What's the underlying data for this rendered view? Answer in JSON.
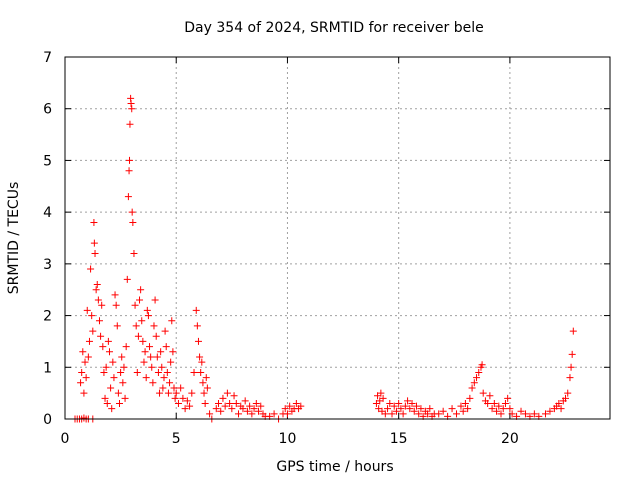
{
  "chart_data": {
    "type": "scatter",
    "title": "Day 354 of 2024, SRMTID for receiver bele",
    "xlabel": "GPS time / hours",
    "ylabel": "SRMTID / TECUs",
    "xlim": [
      0,
      24.5
    ],
    "ylim": [
      0,
      7
    ],
    "xticks": [
      0,
      5,
      10,
      15,
      20
    ],
    "yticks": [
      0,
      1,
      2,
      3,
      4,
      5,
      6,
      7
    ],
    "grid": true,
    "marker": "plus",
    "color": "#ff0000",
    "series": [
      {
        "name": "SRMTID",
        "points": [
          [
            0.45,
            0.0
          ],
          [
            0.55,
            0.0
          ],
          [
            0.65,
            0.0
          ],
          [
            0.75,
            0.0
          ],
          [
            0.85,
            0.02
          ],
          [
            0.95,
            0.0
          ],
          [
            1.05,
            0.0
          ],
          [
            1.25,
            0.0
          ],
          [
            0.7,
            0.7
          ],
          [
            0.75,
            0.9
          ],
          [
            0.8,
            1.3
          ],
          [
            0.85,
            0.5
          ],
          [
            0.9,
            1.1
          ],
          [
            0.95,
            0.8
          ],
          [
            1.0,
            2.1
          ],
          [
            1.05,
            1.2
          ],
          [
            1.1,
            1.5
          ],
          [
            1.15,
            2.9
          ],
          [
            1.2,
            2.0
          ],
          [
            1.25,
            1.7
          ],
          [
            1.3,
            3.8
          ],
          [
            1.32,
            3.4
          ],
          [
            1.35,
            3.2
          ],
          [
            1.4,
            2.5
          ],
          [
            1.45,
            2.6
          ],
          [
            1.5,
            2.3
          ],
          [
            1.55,
            1.9
          ],
          [
            1.6,
            1.6
          ],
          [
            1.65,
            2.2
          ],
          [
            1.7,
            1.4
          ],
          [
            1.75,
            0.9
          ],
          [
            1.8,
            0.4
          ],
          [
            1.85,
            1.0
          ],
          [
            1.9,
            0.3
          ],
          [
            1.95,
            1.5
          ],
          [
            2.0,
            1.3
          ],
          [
            2.05,
            0.6
          ],
          [
            2.1,
            0.2
          ],
          [
            2.15,
            1.1
          ],
          [
            2.2,
            0.8
          ],
          [
            2.25,
            2.4
          ],
          [
            2.3,
            2.2
          ],
          [
            2.35,
            1.8
          ],
          [
            2.4,
            0.5
          ],
          [
            2.45,
            0.3
          ],
          [
            2.5,
            0.9
          ],
          [
            2.55,
            1.2
          ],
          [
            2.6,
            0.7
          ],
          [
            2.65,
            1.0
          ],
          [
            2.7,
            0.4
          ],
          [
            2.75,
            1.4
          ],
          [
            2.8,
            2.7
          ],
          [
            2.85,
            4.3
          ],
          [
            2.88,
            4.8
          ],
          [
            2.9,
            5.0
          ],
          [
            2.92,
            5.7
          ],
          [
            2.95,
            6.2
          ],
          [
            2.97,
            6.1
          ],
          [
            3.0,
            6.0
          ],
          [
            3.02,
            4.0
          ],
          [
            3.05,
            3.8
          ],
          [
            3.1,
            3.2
          ],
          [
            3.15,
            2.2
          ],
          [
            3.2,
            1.8
          ],
          [
            3.25,
            0.9
          ],
          [
            3.3,
            1.6
          ],
          [
            3.35,
            2.3
          ],
          [
            3.4,
            2.5
          ],
          [
            3.45,
            1.9
          ],
          [
            3.5,
            1.5
          ],
          [
            3.55,
            1.1
          ],
          [
            3.6,
            1.3
          ],
          [
            3.65,
            0.8
          ],
          [
            3.7,
            2.1
          ],
          [
            3.75,
            2.0
          ],
          [
            3.8,
            1.4
          ],
          [
            3.85,
            1.2
          ],
          [
            3.9,
            1.0
          ],
          [
            3.95,
            0.7
          ],
          [
            4.0,
            1.8
          ],
          [
            4.05,
            2.3
          ],
          [
            4.1,
            1.6
          ],
          [
            4.15,
            1.2
          ],
          [
            4.2,
            0.9
          ],
          [
            4.25,
            0.5
          ],
          [
            4.3,
            1.3
          ],
          [
            4.35,
            1.0
          ],
          [
            4.4,
            0.6
          ],
          [
            4.45,
            0.8
          ],
          [
            4.5,
            1.7
          ],
          [
            4.55,
            1.4
          ],
          [
            4.6,
            0.9
          ],
          [
            4.65,
            0.5
          ],
          [
            4.7,
            0.7
          ],
          [
            4.75,
            1.1
          ],
          [
            4.8,
            1.9
          ],
          [
            4.85,
            1.3
          ],
          [
            4.9,
            0.6
          ],
          [
            4.95,
            0.4
          ],
          [
            5.0,
            0.5
          ],
          [
            5.1,
            0.3
          ],
          [
            5.2,
            0.6
          ],
          [
            5.3,
            0.4
          ],
          [
            5.4,
            0.2
          ],
          [
            5.5,
            0.35
          ],
          [
            5.6,
            0.25
          ],
          [
            5.7,
            0.5
          ],
          [
            5.8,
            0.9
          ],
          [
            5.9,
            2.1
          ],
          [
            5.95,
            1.8
          ],
          [
            6.0,
            1.5
          ],
          [
            6.05,
            1.2
          ],
          [
            6.1,
            0.9
          ],
          [
            6.15,
            1.1
          ],
          [
            6.2,
            0.7
          ],
          [
            6.25,
            0.5
          ],
          [
            6.3,
            0.3
          ],
          [
            6.35,
            0.8
          ],
          [
            6.4,
            0.6
          ],
          [
            6.5,
            0.1
          ],
          [
            6.6,
            0.0
          ],
          [
            6.8,
            0.2
          ],
          [
            6.9,
            0.3
          ],
          [
            7.0,
            0.15
          ],
          [
            7.1,
            0.4
          ],
          [
            7.2,
            0.25
          ],
          [
            7.3,
            0.5
          ],
          [
            7.4,
            0.3
          ],
          [
            7.5,
            0.2
          ],
          [
            7.6,
            0.45
          ],
          [
            7.7,
            0.3
          ],
          [
            7.8,
            0.1
          ],
          [
            7.9,
            0.25
          ],
          [
            8.0,
            0.2
          ],
          [
            8.1,
            0.35
          ],
          [
            8.2,
            0.15
          ],
          [
            8.3,
            0.25
          ],
          [
            8.4,
            0.1
          ],
          [
            8.5,
            0.2
          ],
          [
            8.6,
            0.3
          ],
          [
            8.7,
            0.15
          ],
          [
            8.8,
            0.25
          ],
          [
            8.9,
            0.1
          ],
          [
            9.0,
            0.05
          ],
          [
            9.2,
            0.05
          ],
          [
            9.4,
            0.1
          ],
          [
            9.6,
            0.0
          ],
          [
            9.8,
            0.1
          ],
          [
            9.9,
            0.2
          ],
          [
            10.0,
            0.1
          ],
          [
            10.1,
            0.25
          ],
          [
            10.2,
            0.15
          ],
          [
            10.3,
            0.2
          ],
          [
            10.4,
            0.3
          ],
          [
            10.5,
            0.2
          ],
          [
            10.6,
            0.25
          ],
          [
            14.0,
            0.3
          ],
          [
            14.05,
            0.45
          ],
          [
            14.1,
            0.2
          ],
          [
            14.15,
            0.35
          ],
          [
            14.2,
            0.5
          ],
          [
            14.25,
            0.15
          ],
          [
            14.3,
            0.4
          ],
          [
            14.4,
            0.1
          ],
          [
            14.5,
            0.2
          ],
          [
            14.6,
            0.3
          ],
          [
            14.7,
            0.1
          ],
          [
            14.8,
            0.25
          ],
          [
            14.9,
            0.15
          ],
          [
            15.0,
            0.3
          ],
          [
            15.1,
            0.2
          ],
          [
            15.2,
            0.1
          ],
          [
            15.3,
            0.25
          ],
          [
            15.4,
            0.35
          ],
          [
            15.5,
            0.2
          ],
          [
            15.6,
            0.3
          ],
          [
            15.7,
            0.15
          ],
          [
            15.8,
            0.25
          ],
          [
            15.9,
            0.1
          ],
          [
            16.0,
            0.2
          ],
          [
            16.1,
            0.05
          ],
          [
            16.2,
            0.15
          ],
          [
            16.3,
            0.1
          ],
          [
            16.4,
            0.2
          ],
          [
            16.5,
            0.05
          ],
          [
            16.6,
            0.1
          ],
          [
            16.8,
            0.1
          ],
          [
            17.0,
            0.15
          ],
          [
            17.2,
            0.05
          ],
          [
            17.4,
            0.2
          ],
          [
            17.6,
            0.1
          ],
          [
            17.8,
            0.25
          ],
          [
            17.9,
            0.15
          ],
          [
            18.0,
            0.3
          ],
          [
            18.1,
            0.2
          ],
          [
            18.2,
            0.4
          ],
          [
            18.3,
            0.6
          ],
          [
            18.4,
            0.7
          ],
          [
            18.5,
            0.8
          ],
          [
            18.6,
            0.9
          ],
          [
            18.7,
            1.0
          ],
          [
            18.75,
            1.05
          ],
          [
            18.8,
            0.5
          ],
          [
            18.9,
            0.35
          ],
          [
            19.0,
            0.3
          ],
          [
            19.1,
            0.45
          ],
          [
            19.2,
            0.2
          ],
          [
            19.3,
            0.3
          ],
          [
            19.4,
            0.15
          ],
          [
            19.5,
            0.25
          ],
          [
            19.6,
            0.1
          ],
          [
            19.7,
            0.2
          ],
          [
            19.8,
            0.3
          ],
          [
            19.9,
            0.4
          ],
          [
            20.0,
            0.2
          ],
          [
            20.1,
            0.1
          ],
          [
            20.3,
            0.05
          ],
          [
            20.5,
            0.15
          ],
          [
            20.7,
            0.1
          ],
          [
            20.9,
            0.05
          ],
          [
            21.1,
            0.1
          ],
          [
            21.3,
            0.05
          ],
          [
            21.6,
            0.1
          ],
          [
            21.8,
            0.15
          ],
          [
            22.0,
            0.2
          ],
          [
            22.1,
            0.25
          ],
          [
            22.2,
            0.3
          ],
          [
            22.3,
            0.2
          ],
          [
            22.4,
            0.35
          ],
          [
            22.5,
            0.4
          ],
          [
            22.6,
            0.5
          ],
          [
            22.7,
            0.8
          ],
          [
            22.75,
            1.0
          ],
          [
            22.8,
            1.25
          ],
          [
            22.85,
            1.7
          ]
        ]
      }
    ]
  }
}
